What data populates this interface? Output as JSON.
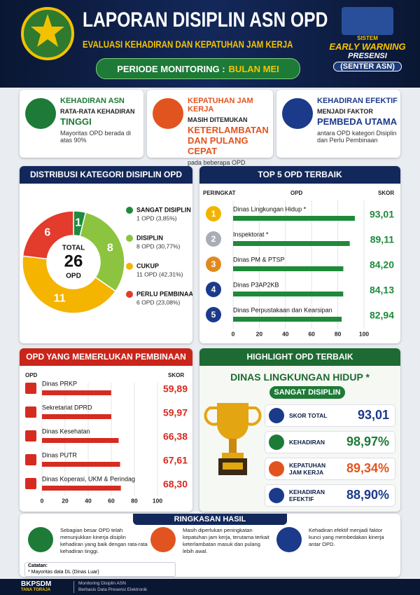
{
  "header": {
    "title": "LAPORAN DISIPLIN ASN OPD",
    "subtitle": "EVALUASI KEHADIRAN DAN KEPATUHAN JAM KERJA",
    "period_label": "PERIODE MONITORING :",
    "period_value": "BULAN MEI",
    "badge": [
      "SISTEM",
      "EARLY WARNING",
      "PRESENSI",
      "(SENTER ASN)"
    ]
  },
  "cards": [
    {
      "title": "KEHADIRAN ASN",
      "line1": "RATA-RATA KEHADIRAN",
      "highlight": "TINGGI",
      "note": "Mayoritas OPD berada di atas 90%"
    },
    {
      "title": "KEPATUHAN JAM KERJA",
      "line1": "MASIH DITEMUKAN",
      "highlight": "KETERLAMBATAN DAN PULANG CEPAT",
      "note": "pada beberapa OPD"
    },
    {
      "title": "KEHADIRAN EFEKTIF",
      "line1": "MENJADI FAKTOR",
      "highlight": "PEMBEDA UTAMA",
      "note": "antara OPD kategori Disiplin dan Perlu Pembinaan"
    }
  ],
  "chart_data": [
    {
      "type": "pie",
      "title": "DISTRIBUSI KATEGORI DISIPLIN OPD",
      "categories": [
        "SANGAT DISIPLIN",
        "DISIPLIN",
        "CUKUP",
        "PERLU PEMBINAAN"
      ],
      "values": [
        1,
        8,
        11,
        6
      ],
      "legend_labels": [
        "1 OPD (3,85%)",
        "8 OPD (30,77%)",
        "11 OPD (42,31%)",
        "6 OPD (23,08%)"
      ],
      "colors": [
        "#1f8a3e",
        "#8cc43f",
        "#f4b400",
        "#e33b2c"
      ],
      "center_top": "TOTAL",
      "center_value": 26,
      "center_bottom": "OPD"
    },
    {
      "type": "bar",
      "title": "TOP 5 OPD TERBAIK",
      "headers": [
        "PERINGKAT",
        "OPD",
        "SKOR"
      ],
      "ranks": [
        1,
        2,
        3,
        4,
        5
      ],
      "categories": [
        "Dinas Lingkungan Hidup *",
        "Inspektorat *",
        "Dinas PM & PTSP",
        "Dinas P3AP2KB",
        "Dinas Perpustakaan dan Kearsipan"
      ],
      "values": [
        93.01,
        89.11,
        84.2,
        84.13,
        82.94
      ],
      "value_labels": [
        "93,01",
        "89,11",
        "84,20",
        "84,13",
        "82,94"
      ],
      "color": "#1e8a3a",
      "xlim": [
        0,
        100
      ],
      "xticks": [
        0,
        20,
        40,
        60,
        80,
        100
      ]
    },
    {
      "type": "bar",
      "title": "OPD YANG MEMERLUKAN PEMBINAAN",
      "headers": [
        "OPD",
        "SKOR"
      ],
      "categories": [
        "Dinas PRKP",
        "Sekretariat DPRD",
        "Dinas Kesehatan",
        "Dinas PUTR",
        "Dinas Koperasi, UKM & Perindag"
      ],
      "values": [
        59.89,
        59.97,
        66.38,
        67.61,
        68.3
      ],
      "value_labels": [
        "59,89",
        "59,97",
        "66,38",
        "67,61",
        "68,30"
      ],
      "color": "#d62b20",
      "xlim": [
        0,
        100
      ],
      "xticks": [
        0,
        20,
        40,
        60,
        80,
        100
      ]
    }
  ],
  "highlight": {
    "title": "HIGHLIGHT OPD TERBAIK",
    "name": "DINAS LINGKUNGAN HIDUP *",
    "category": "SANGAT DISIPLIN",
    "metrics": [
      {
        "label": "SKOR TOTAL",
        "value": "93,01"
      },
      {
        "label": "KEHADIRAN",
        "value": "98,97%"
      },
      {
        "label": "KEPATUHAN JAM KERJA",
        "value": "89,34%"
      },
      {
        "label": "KEHADIRAN EFEKTIF",
        "value": "88,90%"
      }
    ]
  },
  "summary": {
    "title": "RINGKASAN HASIL",
    "items": [
      "Sebagian besar OPD telah menunjukkan kinerja disiplin kehadiran yang baik dengan rata-rata kehadiran tinggi.",
      "Masih diperlukan peningkatan kepatuhan jam kerja, terutama terkait keterlambatan masuk dan pulang lebih awal.",
      "Kehadiran efektif menjadi faktor kunci yang membedakan kinerja antar OPD."
    ],
    "note_title": "Catatan:",
    "note": "* Mayoritas data DL (Dinas Luar)"
  },
  "footer": {
    "org": "BKPSDM",
    "region": "TANA TORAJA",
    "line1": "Monitoring Disiplin ASN",
    "line2": "Berbasis Data Presensi Elektronik"
  }
}
